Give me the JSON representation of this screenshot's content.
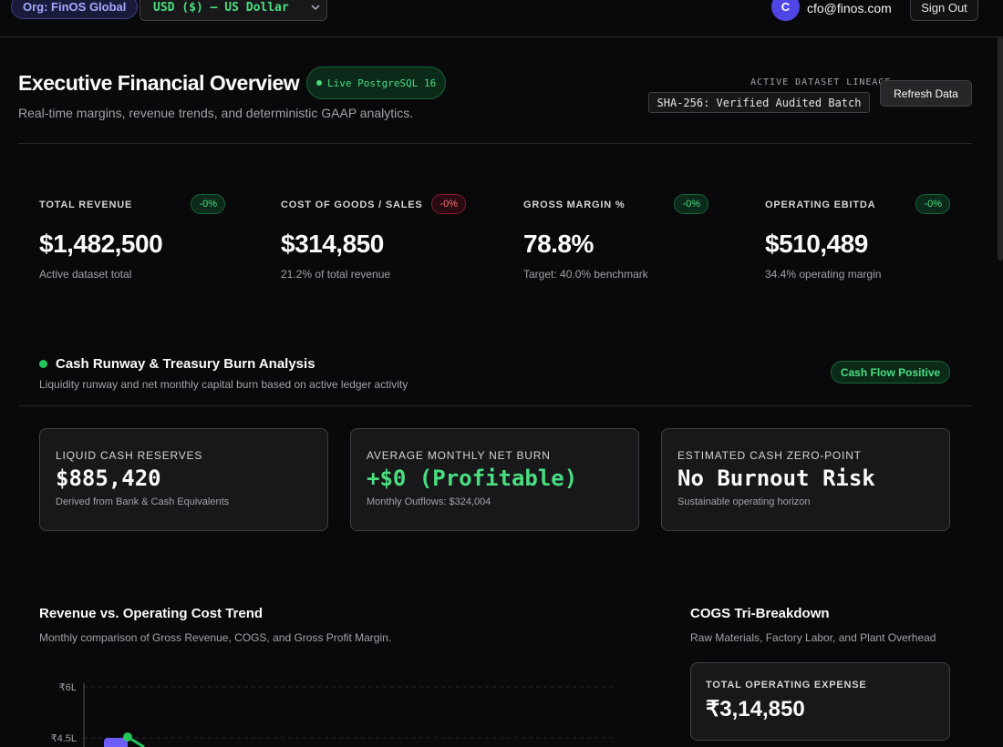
{
  "topbar": {
    "org": "Org: FinOS Global",
    "currency": "USD ($) – US Dollar",
    "avatar_initial": "C",
    "email": "cfo@finos.com",
    "signout": "Sign Out"
  },
  "header": {
    "title": "Executive Financial Overview",
    "live_badge": "Live PostgreSQL 16",
    "subtitle": "Real-time margins, revenue trends, and deterministic GAAP analytics.",
    "lineage_label": "ACTIVE DATASET LINEAGE",
    "lineage_value": "SHA-256: Verified Audited Batch",
    "refresh": "Refresh Data"
  },
  "kpis": [
    {
      "label": "TOTAL REVENUE",
      "badge": "-0%",
      "value": "$1,482,500",
      "sub": "Active dataset total"
    },
    {
      "label": "COST OF GOODS / SALES",
      "badge": "-0%",
      "value": "$314,850",
      "sub": "21.2% of total revenue"
    },
    {
      "label": "GROSS MARGIN %",
      "badge": "-0%",
      "value": "78.8%",
      "sub": "Target: 40.0% benchmark"
    },
    {
      "label": "OPERATING EBITDA",
      "badge": "-0%",
      "value": "$510,489",
      "sub": "34.4% operating margin"
    }
  ],
  "runway": {
    "title": "Cash Runway & Treasury Burn Analysis",
    "subtitle": "Liquidity runway and net monthly capital burn based on active ledger activity",
    "status": "Cash Flow Positive",
    "cards": [
      {
        "label": "LIQUID CASH RESERVES",
        "value": "$885,420",
        "sub": "Derived from Bank & Cash Equivalents"
      },
      {
        "label": "AVERAGE MONTHLY NET BURN",
        "value": "+$0 (Profitable)",
        "sub": "Monthly Outflows: $324,004"
      },
      {
        "label": "ESTIMATED CASH ZERO-POINT",
        "value": "No Burnout Risk",
        "sub": "Sustainable operating horizon"
      }
    ]
  },
  "trend": {
    "title": "Revenue vs. Operating Cost Trend",
    "subtitle": "Monthly comparison of Gross Revenue, COGS, and Gross Profit Margin.",
    "y_ticks": [
      "₹6L",
      "₹4.5L"
    ]
  },
  "cogs": {
    "title": "COGS Tri-Breakdown",
    "subtitle": "Raw Materials, Factory Labor, and Plant Overhead",
    "opex_label": "TOTAL OPERATING EXPENSE",
    "opex_value": "₹3,14,850"
  },
  "colors": {
    "accent_green": "#4ade80",
    "accent_red": "#f87171",
    "bar_purple": "#6d5dfc"
  }
}
